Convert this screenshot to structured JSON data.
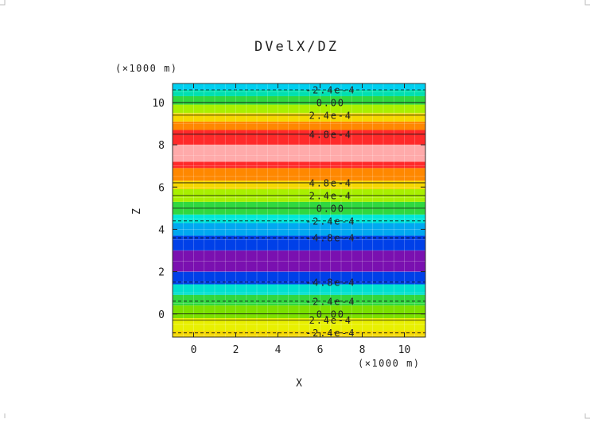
{
  "chart_data": {
    "type": "heatmap",
    "title": "DVelX/DZ",
    "xlabel": "X",
    "ylabel": "Z",
    "x_unit": "(×1000 m)",
    "y_unit": "(×1000 m)",
    "xlim": [
      -1,
      11
    ],
    "ylim": [
      -1.1,
      10.9
    ],
    "xticks": [
      "0",
      "2",
      "4",
      "6",
      "8",
      "10"
    ],
    "yticks": [
      "0",
      "2",
      "4",
      "6",
      "8",
      "10"
    ],
    "grid": true,
    "bands": [
      {
        "z0": -1.1,
        "z1": -0.8,
        "color": "#f5d800"
      },
      {
        "z0": -0.8,
        "z1": -0.2,
        "color": "#e8f000"
      },
      {
        "z0": -0.2,
        "z1": 0.4,
        "color": "#7ae000"
      },
      {
        "z0": 0.4,
        "z1": 0.9,
        "color": "#30d840"
      },
      {
        "z0": 0.9,
        "z1": 1.4,
        "color": "#00e0d0"
      },
      {
        "z0": 1.4,
        "z1": 2.0,
        "color": "#0040e8"
      },
      {
        "z0": 2.0,
        "z1": 3.0,
        "color": "#7a10b0"
      },
      {
        "z0": 3.0,
        "z1": 3.7,
        "color": "#0040e8"
      },
      {
        "z0": 3.7,
        "z1": 4.3,
        "color": "#00a8f0"
      },
      {
        "z0": 4.3,
        "z1": 4.7,
        "color": "#00e8d8"
      },
      {
        "z0": 4.7,
        "z1": 5.3,
        "color": "#30d840"
      },
      {
        "z0": 5.3,
        "z1": 5.9,
        "color": "#a8f000"
      },
      {
        "z0": 5.9,
        "z1": 6.3,
        "color": "#f5d800"
      },
      {
        "z0": 6.3,
        "z1": 6.9,
        "color": "#ff8800"
      },
      {
        "z0": 6.9,
        "z1": 7.2,
        "color": "#ff2a2a"
      },
      {
        "z0": 7.2,
        "z1": 8.0,
        "color": "#ffaaaa"
      },
      {
        "z0": 8.0,
        "z1": 8.7,
        "color": "#ff2a2a"
      },
      {
        "z0": 8.7,
        "z1": 9.1,
        "color": "#ff8800"
      },
      {
        "z0": 9.1,
        "z1": 9.5,
        "color": "#f5d800"
      },
      {
        "z0": 9.5,
        "z1": 9.9,
        "color": "#a8f000"
      },
      {
        "z0": 9.9,
        "z1": 10.3,
        "color": "#30d840"
      },
      {
        "z0": 10.3,
        "z1": 10.6,
        "color": "#00e0b0"
      },
      {
        "z0": 10.6,
        "z1": 10.9,
        "color": "#00d0f0"
      }
    ],
    "contours": [
      {
        "z": -0.9,
        "label": "-2.4e-4",
        "dashed": true
      },
      {
        "z": -0.3,
        "label": "2.4e-4",
        "dashed": false
      },
      {
        "z": 0.0,
        "label": "0.00",
        "dashed": false
      },
      {
        "z": 0.6,
        "label": "-2.4e-4",
        "dashed": true
      },
      {
        "z": 1.5,
        "label": "-4.8e-4",
        "dashed": true
      },
      {
        "z": 3.6,
        "label": "-4.8e-4",
        "dashed": true
      },
      {
        "z": 4.4,
        "label": "-2.4e-4",
        "dashed": true
      },
      {
        "z": 5.0,
        "label": "0.00",
        "dashed": false
      },
      {
        "z": 5.6,
        "label": "2.4e-4",
        "dashed": false
      },
      {
        "z": 6.2,
        "label": "4.8e-4",
        "dashed": false
      },
      {
        "z": 8.5,
        "label": "4.8e-4",
        "dashed": false
      },
      {
        "z": 9.4,
        "label": "2.4e-4",
        "dashed": false
      },
      {
        "z": 10.0,
        "label": "0.00",
        "dashed": false
      },
      {
        "z": 10.6,
        "label": "-2.4e-4",
        "dashed": true
      }
    ]
  }
}
